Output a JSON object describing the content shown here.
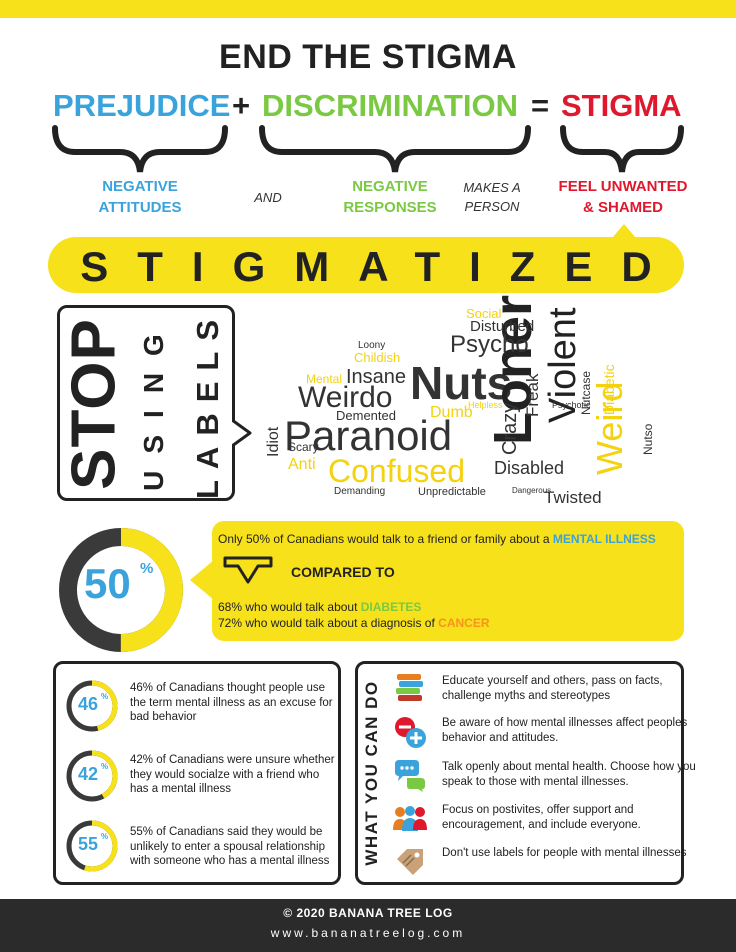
{
  "title": "END THE STIGMA",
  "equation": {
    "term1": "PREJUDICE",
    "plus": "+",
    "term2": "DISCRIMINATION",
    "equals": "=",
    "result": "STIGMA"
  },
  "descriptors": {
    "d1": [
      "NEGATIVE",
      "ATTITUDES"
    ],
    "and": "AND",
    "d2": [
      "NEGATIVE",
      "RESPONSES"
    ],
    "makes": [
      "MAKES A",
      "PERSON"
    ],
    "d3": [
      "FEEL UNWANTED",
      "& SHAMED"
    ]
  },
  "stigmatized": "STIGMATIZED",
  "stop": {
    "w1": "STOP",
    "w2": "USING",
    "w3": "LABELS"
  },
  "wordcloud": {
    "words": [
      "Nuts",
      "Paranoid",
      "Loner",
      "Violent",
      "Weirdo",
      "Confused",
      "Psycho",
      "Weird",
      "Crazy",
      "Insane",
      "Disabled",
      "Twisted",
      "Disturbed",
      "Idiot",
      "Demented",
      "Anti",
      "Dumb",
      "Mental",
      "Childish",
      "Loony",
      "Scary",
      "Social",
      "Freak",
      "Nutcase",
      "Unpredictable",
      "Demanding",
      "Dangerous",
      "Helpless",
      "Diabetic",
      "Psychotic",
      "Nutso"
    ]
  },
  "stat50": {
    "value": "50",
    "pct": "%",
    "line1_pre": "Only 50% of Canadians would talk to a friend or family about a ",
    "line1_hl": "MENTAL ILLNESS",
    "compared": "COMPARED TO",
    "line2_pre": "68% who would talk about ",
    "line2_hl": "DIABETES",
    "line3_pre": "72% who would talk about a diagnosis of ",
    "line3_hl": "CANCER"
  },
  "stats": [
    {
      "value": "46",
      "pct": "%",
      "text": "46% of Canadians thought people use the term mental illness as an excuse for bad behavior",
      "fill": 0.46
    },
    {
      "value": "42",
      "pct": "%",
      "text": "42% of Canadians were unsure whether they would socialze with a friend who has a mental illness",
      "fill": 0.42
    },
    {
      "value": "55",
      "pct": "%",
      "text": "55% of Canadians said they would be unlikely to enter a spousal relationship with someone who has a mental illness",
      "fill": 0.55
    }
  ],
  "what_you_can_do": {
    "title": "WHAT YOU CAN DO",
    "items": [
      {
        "icon": "books-icon",
        "text": "Educate yourself and others, pass on facts, challenge myths and stereotypes"
      },
      {
        "icon": "plus-minus-icon",
        "text": "Be aware of how mental illnesses affect peoples behavior and attitudes."
      },
      {
        "icon": "chat-bubbles-icon",
        "text": "Talk openly about mental health.  Choose how you speak to those with mental illnesses."
      },
      {
        "icon": "people-group-icon",
        "text": "Focus on postivites, offer support and encouragement, and include everyone."
      },
      {
        "icon": "label-tag-icon",
        "text": "Don't use labels for people with mental illnesses"
      }
    ]
  },
  "footer": {
    "copyright": "© 2020 BANANA TREE LOG",
    "url": "www.bananatreelog.com"
  },
  "colors": {
    "yellow": "#f7e11b",
    "blue": "#3aa3dc",
    "green": "#7ac943",
    "red": "#e0182d",
    "orange": "#f7931e",
    "dark": "#222222",
    "gray_ring": "#3a3a3a"
  }
}
